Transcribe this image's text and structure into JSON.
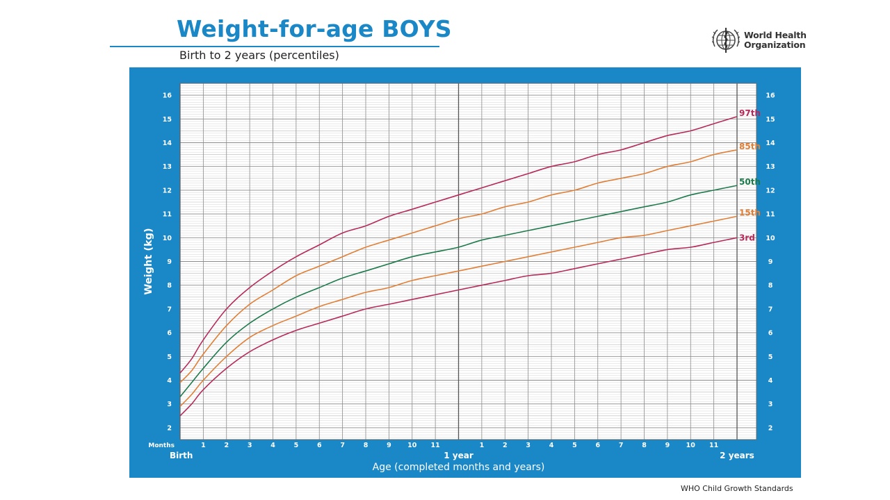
{
  "header": {
    "title": "Weight-for-age BOYS",
    "subtitle": "Birth to 2 years (percentiles)"
  },
  "logo": {
    "icon": "who-emblem-icon",
    "line1": "World Health",
    "line2": "Organization"
  },
  "footer": {
    "text": "WHO Child Growth Standards"
  },
  "colors": {
    "brand_blue": "#1a87c7",
    "p97": "#b52a5a",
    "p85": "#e07e35",
    "p50": "#1c7a4a",
    "p15": "#e07e35",
    "p3": "#b52a5a"
  },
  "chart_data": {
    "type": "line",
    "title": "Weight-for-age BOYS",
    "subtitle": "Birth to 2 years (percentiles)",
    "xlabel": "Age (completed months and years)",
    "ylabel": "Weight (kg)",
    "x_unit_label": "Months",
    "xlim": [
      0,
      24
    ],
    "ylim": [
      1.5,
      16.5
    ],
    "y_ticks": [
      2,
      3,
      4,
      5,
      6,
      7,
      8,
      9,
      10,
      11,
      12,
      13,
      14,
      15,
      16
    ],
    "x_month_ticks": [
      {
        "x": 1,
        "label": "1"
      },
      {
        "x": 2,
        "label": "2"
      },
      {
        "x": 3,
        "label": "3"
      },
      {
        "x": 4,
        "label": "4"
      },
      {
        "x": 5,
        "label": "5"
      },
      {
        "x": 6,
        "label": "6"
      },
      {
        "x": 7,
        "label": "7"
      },
      {
        "x": 8,
        "label": "8"
      },
      {
        "x": 9,
        "label": "9"
      },
      {
        "x": 10,
        "label": "10"
      },
      {
        "x": 11,
        "label": "11"
      },
      {
        "x": 13,
        "label": "1"
      },
      {
        "x": 14,
        "label": "2"
      },
      {
        "x": 15,
        "label": "3"
      },
      {
        "x": 16,
        "label": "4"
      },
      {
        "x": 17,
        "label": "5"
      },
      {
        "x": 18,
        "label": "6"
      },
      {
        "x": 19,
        "label": "7"
      },
      {
        "x": 20,
        "label": "8"
      },
      {
        "x": 21,
        "label": "9"
      },
      {
        "x": 22,
        "label": "10"
      },
      {
        "x": 23,
        "label": "11"
      }
    ],
    "x_major_ticks": [
      {
        "x": 0,
        "label": "Birth"
      },
      {
        "x": 12,
        "label": "1 year"
      },
      {
        "x": 24,
        "label": "2 years"
      }
    ],
    "grid": true,
    "x": [
      0,
      0.5,
      1,
      2,
      3,
      4,
      5,
      6,
      7,
      8,
      9,
      10,
      11,
      12,
      13,
      14,
      15,
      16,
      17,
      18,
      19,
      20,
      21,
      22,
      23,
      24
    ],
    "series": [
      {
        "name": "97th",
        "color": "#b52a5a",
        "values": [
          4.3,
          4.9,
          5.7,
          7.0,
          7.9,
          8.6,
          9.2,
          9.7,
          10.2,
          10.5,
          10.9,
          11.2,
          11.5,
          11.8,
          12.1,
          12.4,
          12.7,
          13.0,
          13.2,
          13.5,
          13.7,
          14.0,
          14.3,
          14.5,
          14.8,
          15.1
        ]
      },
      {
        "name": "85th",
        "color": "#e07e35",
        "values": [
          3.9,
          4.4,
          5.1,
          6.3,
          7.2,
          7.8,
          8.4,
          8.8,
          9.2,
          9.6,
          9.9,
          10.2,
          10.5,
          10.8,
          11.0,
          11.3,
          11.5,
          11.8,
          12.0,
          12.3,
          12.5,
          12.7,
          13.0,
          13.2,
          13.5,
          13.7
        ]
      },
      {
        "name": "50th",
        "color": "#1c7a4a",
        "values": [
          3.3,
          3.9,
          4.5,
          5.6,
          6.4,
          7.0,
          7.5,
          7.9,
          8.3,
          8.6,
          8.9,
          9.2,
          9.4,
          9.6,
          9.9,
          10.1,
          10.3,
          10.5,
          10.7,
          10.9,
          11.1,
          11.3,
          11.5,
          11.8,
          12.0,
          12.2
        ]
      },
      {
        "name": "15th",
        "color": "#e07e35",
        "values": [
          2.9,
          3.4,
          4.0,
          5.0,
          5.8,
          6.3,
          6.7,
          7.1,
          7.4,
          7.7,
          7.9,
          8.2,
          8.4,
          8.6,
          8.8,
          9.0,
          9.2,
          9.4,
          9.6,
          9.8,
          10.0,
          10.1,
          10.3,
          10.5,
          10.7,
          10.9
        ]
      },
      {
        "name": "3rd",
        "color": "#b52a5a",
        "values": [
          2.5,
          3.0,
          3.6,
          4.5,
          5.2,
          5.7,
          6.1,
          6.4,
          6.7,
          7.0,
          7.2,
          7.4,
          7.6,
          7.8,
          8.0,
          8.2,
          8.4,
          8.5,
          8.7,
          8.9,
          9.1,
          9.3,
          9.5,
          9.6,
          9.8,
          10.0
        ]
      }
    ]
  }
}
